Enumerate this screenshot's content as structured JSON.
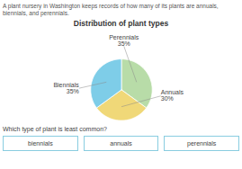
{
  "chart_data": {
    "type": "pie",
    "title": "Distribution of plant types",
    "subtitle": "A plant nursery in Washington keeps records of how many of its plants are annuals, biennials, and perennials.",
    "categories": [
      "Perennials",
      "Annuals",
      "Biennials"
    ],
    "values": [
      35,
      30,
      35
    ],
    "colors": [
      "#b8dca8",
      "#f0d878",
      "#7ecde8"
    ],
    "data_labels": true,
    "value_labels": [
      "35%",
      "30%",
      "35%"
    ],
    "caption": "Which type of plant is least common?",
    "buttons": [
      "biennials",
      "annuals",
      "perennials"
    ]
  }
}
